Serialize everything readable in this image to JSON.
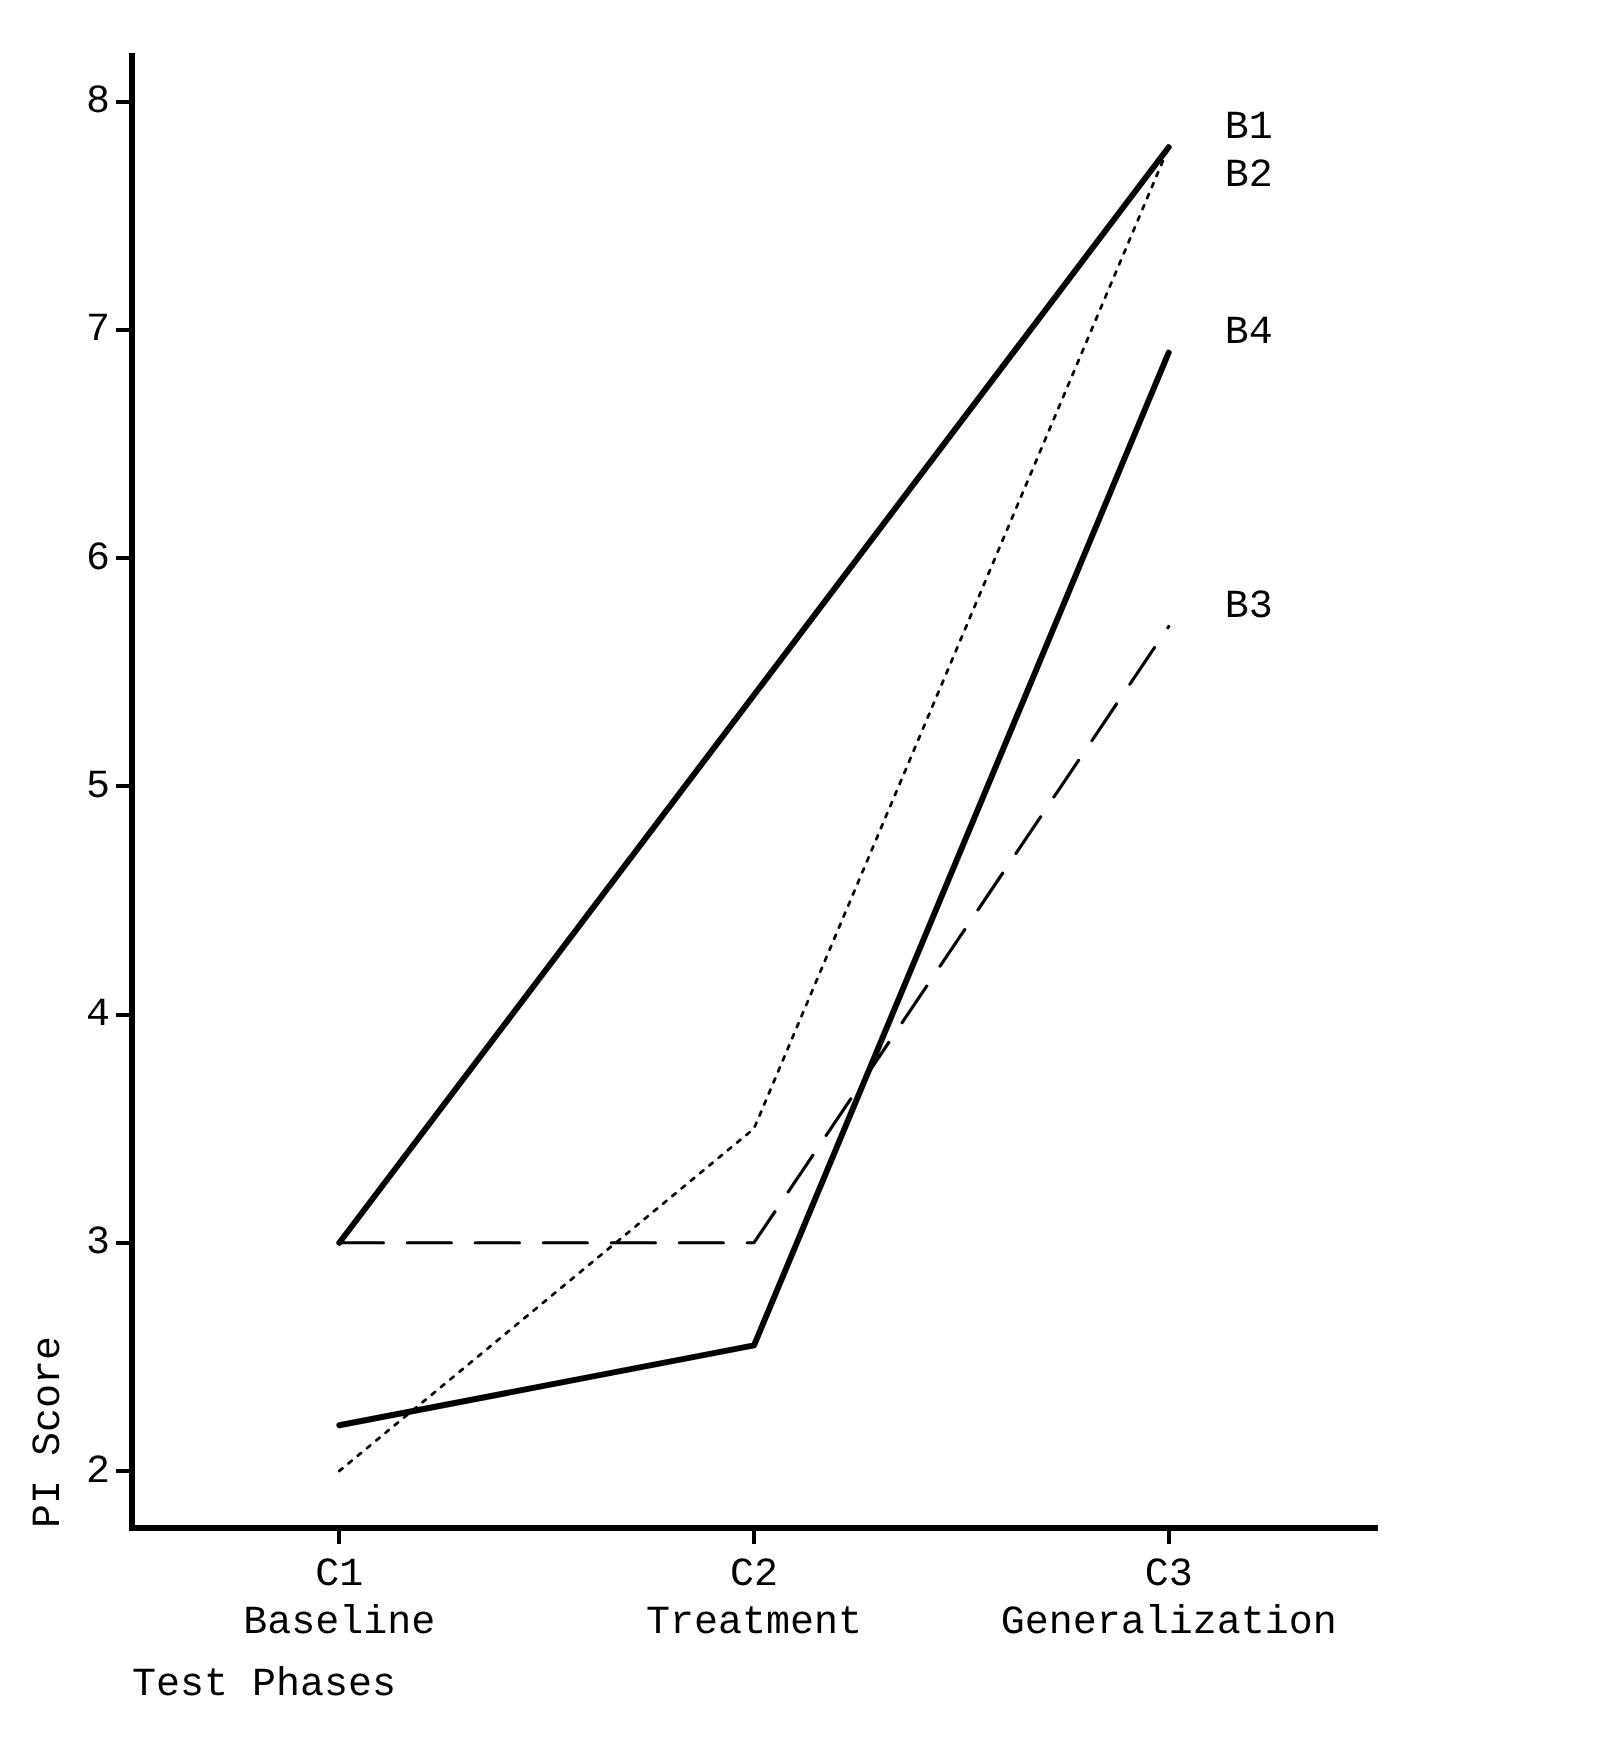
{
  "chart_data": {
    "type": "line",
    "xlabel": "Test Phases",
    "ylabel": "PI Score",
    "categories": [
      "C1\nBaseline",
      "C2\nTreatment",
      "C3\nGeneralization"
    ],
    "ylim": [
      1.75,
      8.2
    ],
    "yticks": [
      2,
      3,
      4,
      5,
      6,
      7,
      8
    ],
    "grid": false,
    "legend": false,
    "marker": "none",
    "series": [
      {
        "name": "B1",
        "color": "#000000",
        "line_style": "solid",
        "values": [
          3.0,
          5.4,
          7.8
        ]
      },
      {
        "name": "B2",
        "color": "#000000",
        "line_style": "dotted",
        "values": [
          2.0,
          3.5,
          7.8
        ]
      },
      {
        "name": "B3",
        "color": "#000000",
        "line_style": "dashed",
        "values": [
          3.0,
          3.0,
          5.7
        ]
      },
      {
        "name": "B4",
        "color": "#000000",
        "line_style": "solid",
        "values": [
          2.2,
          2.55,
          6.9
        ]
      }
    ]
  }
}
